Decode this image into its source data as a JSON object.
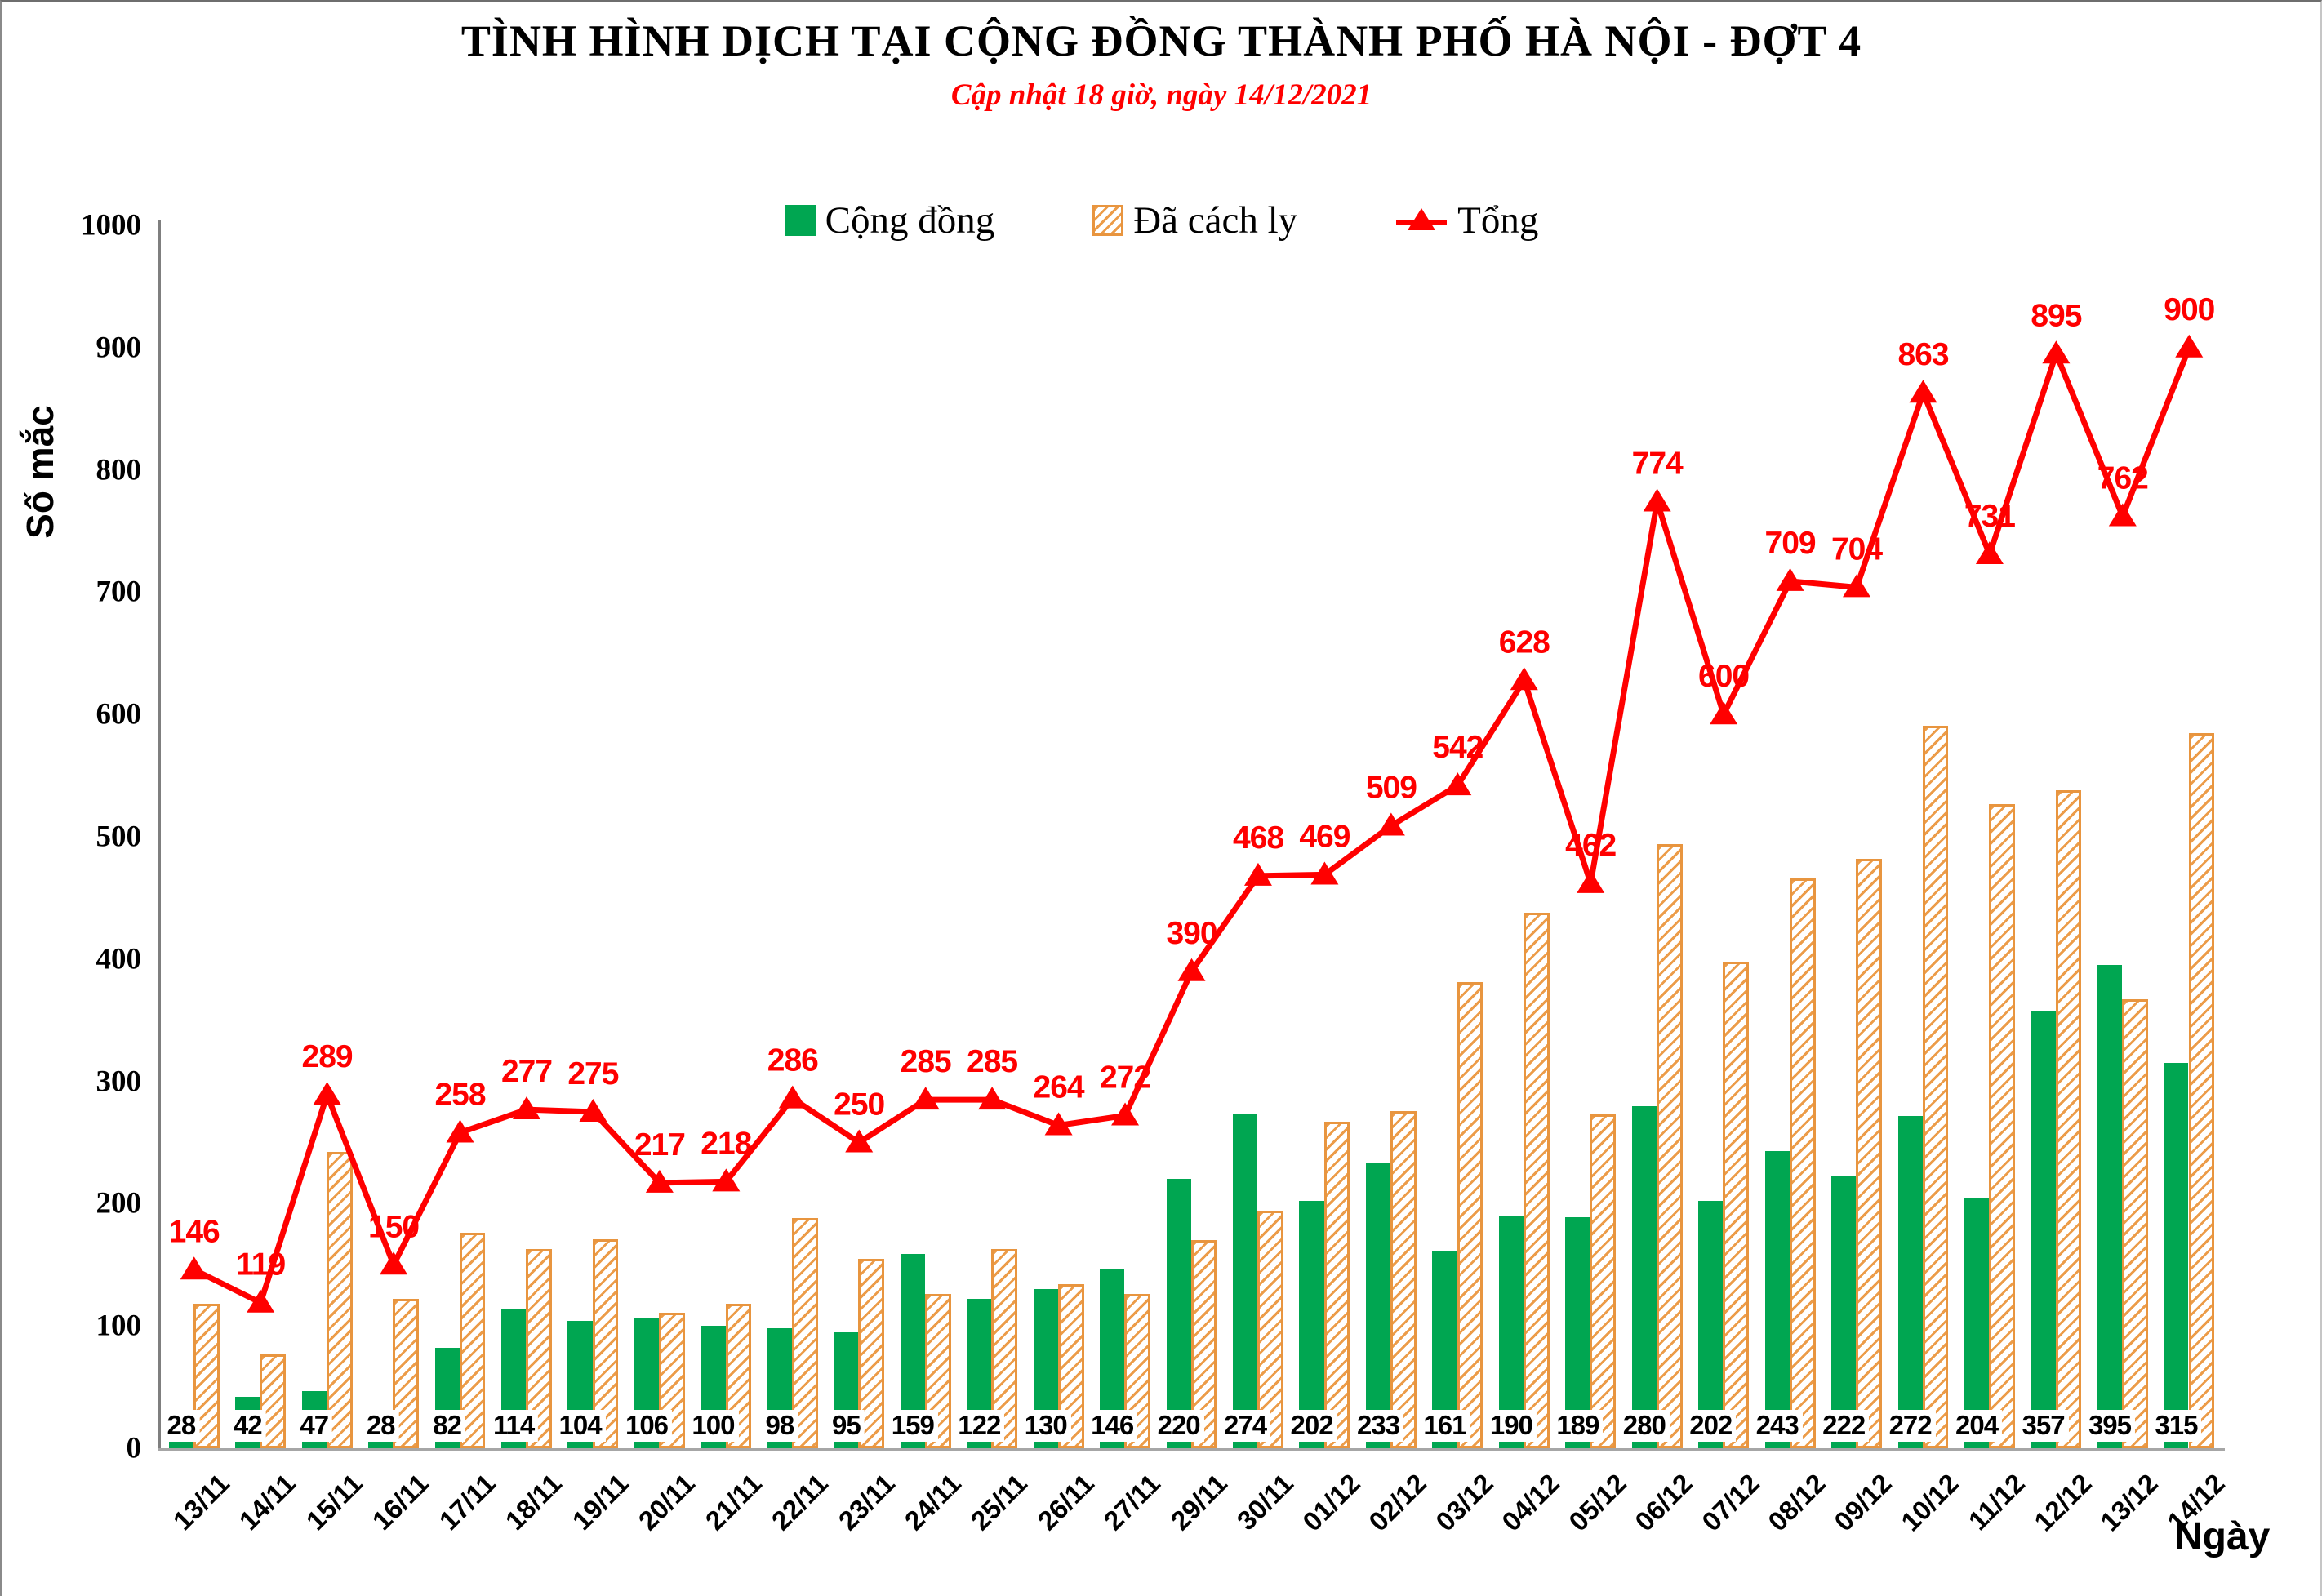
{
  "title": "TÌNH HÌNH DỊCH TẠI CỘNG ĐỒNG THÀNH PHỐ HÀ NỘI - ĐỢT 4",
  "subtitle": "Cập nhật 18 giờ, ngày 14/12/2021",
  "axes": {
    "y_label": "Số mắc",
    "x_label": "Ngày",
    "y_ticks": [
      0,
      100,
      200,
      300,
      400,
      500,
      600,
      700,
      800,
      900,
      1000
    ]
  },
  "colors": {
    "community": "#00A651",
    "quarantined": "#E8953F",
    "total": "#FF0000",
    "x_axis": "#A6A6A6",
    "y_axis": "#7F7F7F"
  },
  "chart_data": {
    "type": "combo",
    "title": "TÌNH HÌNH DỊCH TẠI CỘNG ĐỒNG THÀNH PHỐ HÀ NỘI - ĐỢT 4",
    "subtitle": "Cập nhật 18 giờ, ngày 14/12/2021",
    "xlabel": "Ngày",
    "ylabel": "Số mắc",
    "ylim": [
      0,
      1000
    ],
    "ytick_step": 100,
    "grid": false,
    "legend_position": "top",
    "categories": [
      "13/11",
      "14/11",
      "15/11",
      "16/11",
      "17/11",
      "18/11",
      "19/11",
      "20/11",
      "21/11",
      "22/11",
      "23/11",
      "24/11",
      "25/11",
      "26/11",
      "27/11",
      "29/11",
      "30/11",
      "01/12",
      "02/12",
      "03/12",
      "04/12",
      "05/12",
      "06/12",
      "07/12",
      "08/12",
      "09/12",
      "10/12",
      "11/12",
      "12/12",
      "13/12",
      "14/12"
    ],
    "series": [
      {
        "name": "Cộng đồng",
        "type": "bar",
        "color": "#00A651",
        "labels_shown": true,
        "values": [
          28,
          42,
          47,
          28,
          82,
          114,
          104,
          106,
          100,
          98,
          95,
          159,
          122,
          130,
          146,
          220,
          274,
          202,
          233,
          161,
          190,
          189,
          280,
          202,
          243,
          222,
          272,
          204,
          357,
          395,
          315
        ]
      },
      {
        "name": "Đã cách ly",
        "type": "bar",
        "color": "#E8953F",
        "fill_style": "diagonal-hatch-on-white",
        "labels_shown": false,
        "values": [
          118,
          77,
          242,
          122,
          176,
          163,
          171,
          111,
          118,
          188,
          155,
          126,
          163,
          134,
          126,
          170,
          194,
          267,
          276,
          381,
          438,
          273,
          494,
          398,
          466,
          482,
          591,
          527,
          538,
          367,
          585
        ]
      },
      {
        "name": "Tổng",
        "type": "line",
        "color": "#FF0000",
        "marker": "triangle-up",
        "labels_shown": true,
        "values": [
          146,
          119,
          289,
          150,
          258,
          277,
          275,
          217,
          218,
          286,
          250,
          285,
          285,
          264,
          272,
          390,
          468,
          469,
          509,
          542,
          628,
          462,
          774,
          600,
          709,
          704,
          863,
          731,
          895,
          762,
          900
        ]
      }
    ]
  }
}
